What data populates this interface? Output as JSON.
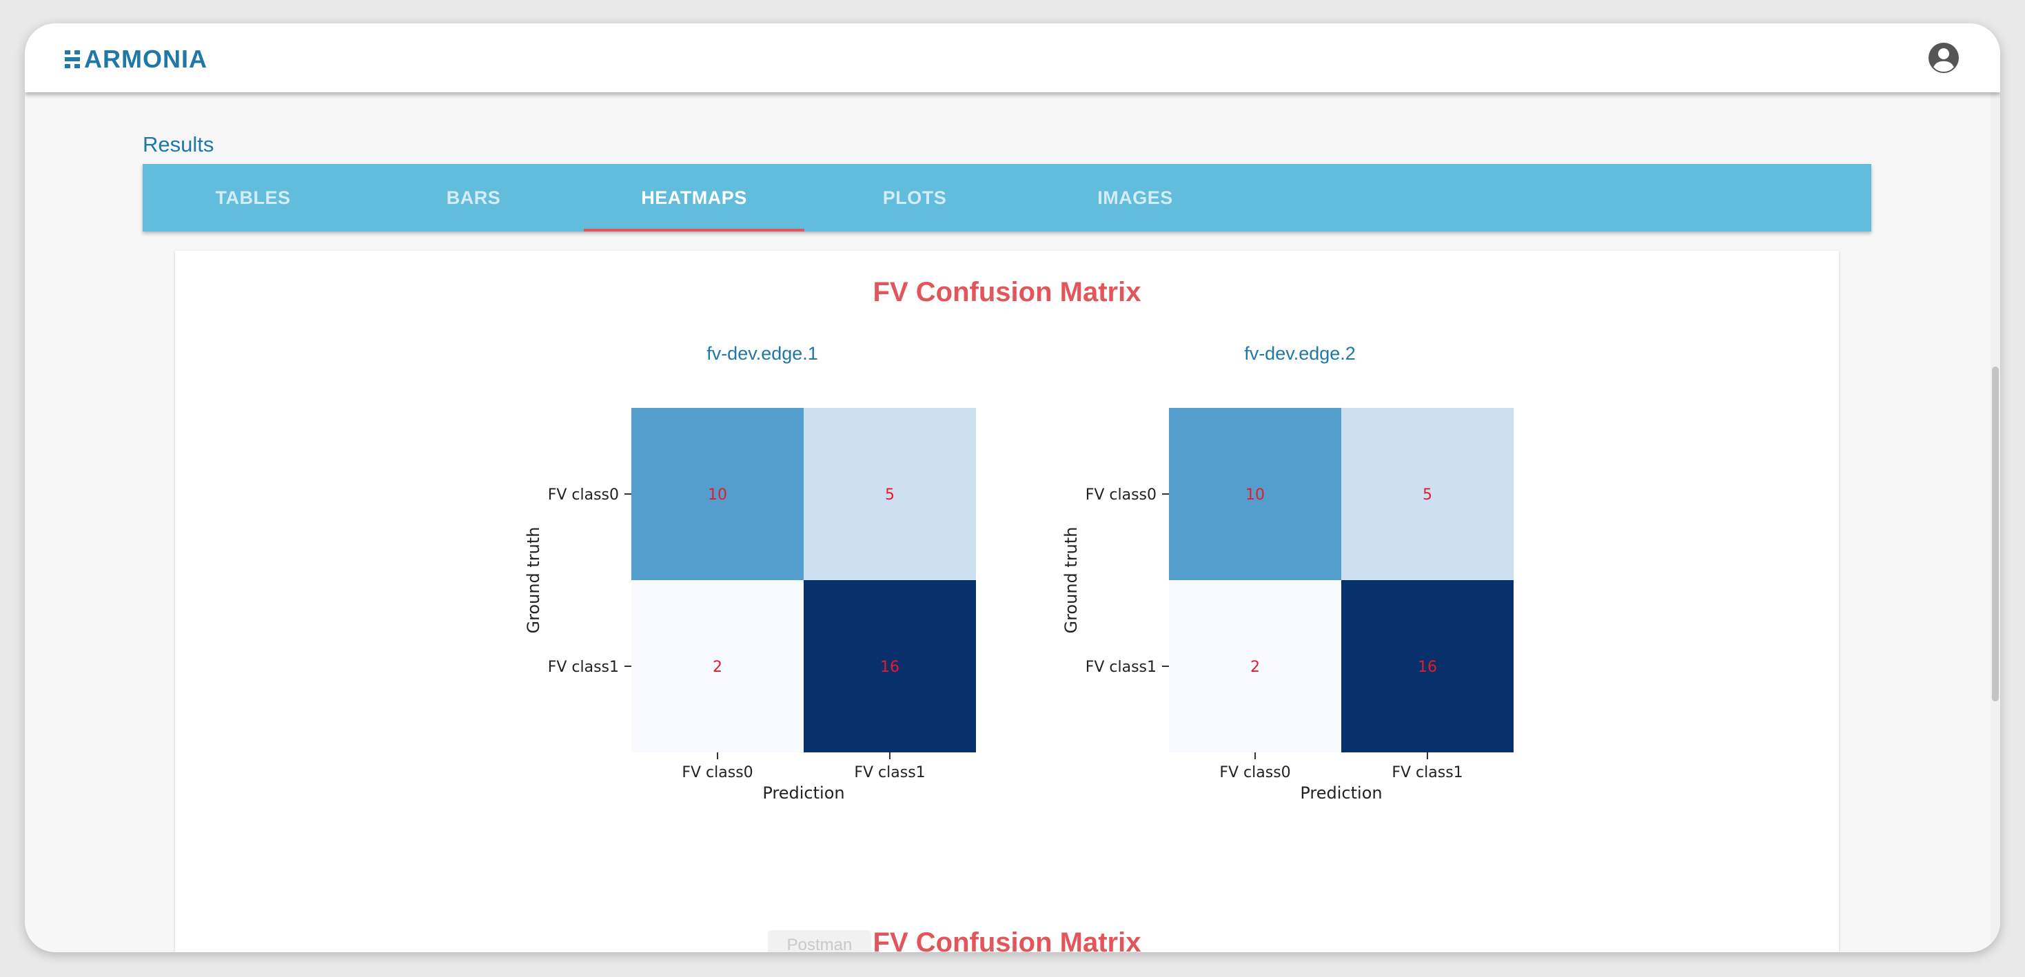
{
  "app": {
    "logo_text": "ARMONIA",
    "account_icon": "account-circle-icon"
  },
  "results": {
    "title": "Results"
  },
  "tabs": [
    {
      "label": "TABLES",
      "active": false
    },
    {
      "label": "BARS",
      "active": false
    },
    {
      "label": "HEATMAPS",
      "active": true
    },
    {
      "label": "PLOTS",
      "active": false
    },
    {
      "label": "IMAGES",
      "active": false
    }
  ],
  "sections": [
    {
      "title": "FV Confusion Matrix"
    },
    {
      "title": "FV Confusion Matrix"
    }
  ],
  "colors": {
    "primary": "#1f78a8",
    "tab_bar": "#62bcdc",
    "accent_red": "#e2565b",
    "cell_value_text": "#e8192c"
  },
  "chart_data": [
    {
      "type": "heatmap",
      "title": "fv-dev.edge.1",
      "xlabel": "Prediction",
      "ylabel": "Ground truth",
      "x_categories": [
        "FV class0",
        "FV class1"
      ],
      "y_categories": [
        "FV class0",
        "FV class1"
      ],
      "values": [
        [
          10,
          5
        ],
        [
          2,
          16
        ]
      ],
      "colormap": "Blues"
    },
    {
      "type": "heatmap",
      "title": "fv-dev.edge.2",
      "xlabel": "Prediction",
      "ylabel": "Ground truth",
      "x_categories": [
        "FV class0",
        "FV class1"
      ],
      "y_categories": [
        "FV class0",
        "FV class1"
      ],
      "values": [
        [
          10,
          5
        ],
        [
          2,
          16
        ]
      ],
      "colormap": "Blues"
    }
  ],
  "overlay": {
    "postman_label": "Postman"
  }
}
